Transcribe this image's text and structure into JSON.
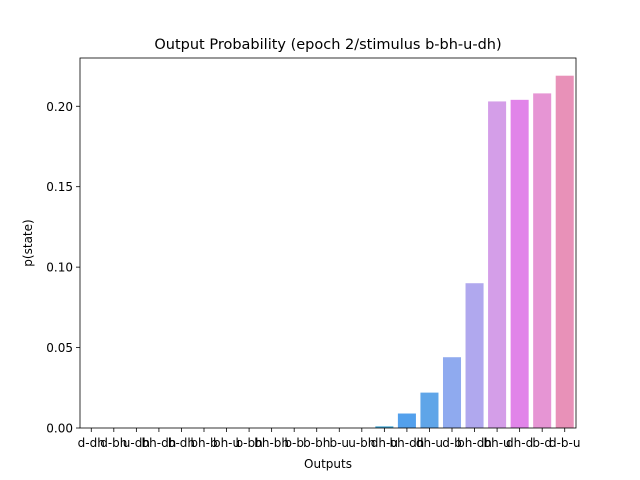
{
  "chart_data": {
    "type": "bar",
    "title": "Output Probability (epoch 2/stimulus b-bh-u-dh)",
    "xlabel": "Outputs",
    "ylabel": "p(state)",
    "ylim": [
      0,
      0.23
    ],
    "yticks": [
      "0.00",
      "0.05",
      "0.10",
      "0.15",
      "0.20"
    ],
    "categories": [
      "d-dh",
      "d-bh",
      "u-dh",
      "bh-dh",
      "b-dh",
      "bh-b",
      "bh-u",
      "b-bh",
      "bh-bh",
      "b-b",
      "b-bh",
      "b-u",
      "u-bh",
      "dh-u",
      "bh-dh",
      "dh-u",
      "d-b",
      "bh-dh",
      "bh-u",
      "dh-d",
      "b-d",
      "d-b-u"
    ],
    "values": [
      0.0,
      0.0,
      0.0,
      0.0,
      0.0,
      0.0,
      0.0,
      0.0,
      0.0,
      0.0,
      0.0,
      0.0,
      0.0,
      0.001,
      0.009,
      0.022,
      0.044,
      0.09,
      0.203,
      0.204,
      0.208,
      0.219
    ],
    "colors": [
      "#f77189",
      "#f27d4e",
      "#dc8932",
      "#c39532",
      "#ae9d31",
      "#97a431",
      "#77ab31",
      "#33b039",
      "#35ad6b",
      "#36ab86",
      "#37a99a",
      "#38a7ab",
      "#3aa5bd",
      "#3ba3d2",
      "#53a0ec",
      "#5fa5e8",
      "#8faaef",
      "#b0a8ee",
      "#d49ee8",
      "#e184e9",
      "#e695d4",
      "#e891b8"
    ]
  }
}
